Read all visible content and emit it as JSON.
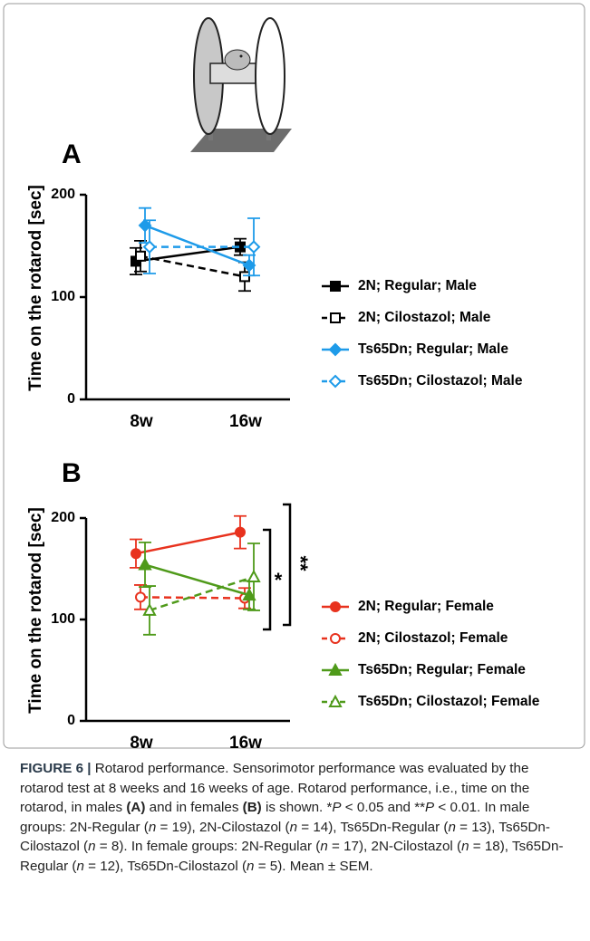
{
  "chart_data": [
    {
      "type": "line",
      "panel": "A",
      "ylabel": "Time on the rotarod [sec]",
      "categories": [
        "8w",
        "16w"
      ],
      "ylim": [
        0,
        200
      ],
      "yticks": [
        0,
        100,
        200
      ],
      "series": [
        {
          "name": "2N; Regular; Male",
          "color": "#000000",
          "marker": "square",
          "filled": true,
          "dashed": false,
          "values": [
            135,
            149
          ],
          "errors": [
            13,
            8
          ]
        },
        {
          "name": "2N; Cilostazol; Male",
          "color": "#000000",
          "marker": "square",
          "filled": false,
          "dashed": true,
          "values": [
            140,
            120
          ],
          "errors": [
            15,
            14
          ]
        },
        {
          "name": "Ts65Dn; Regular; Male",
          "color": "#1e9be9",
          "marker": "diamond",
          "filled": true,
          "dashed": false,
          "values": [
            170,
            131
          ],
          "errors": [
            17,
            10
          ]
        },
        {
          "name": "Ts65Dn; Cilostazol; Male",
          "color": "#1e9be9",
          "marker": "diamond",
          "filled": false,
          "dashed": true,
          "values": [
            149,
            149
          ],
          "errors": [
            26,
            28
          ]
        }
      ]
    },
    {
      "type": "line",
      "panel": "B",
      "ylabel": "Time on the rotarod [sec]",
      "categories": [
        "8w",
        "16w"
      ],
      "ylim": [
        0,
        200
      ],
      "yticks": [
        0,
        100,
        200
      ],
      "annotations": [
        "*",
        "**"
      ],
      "series": [
        {
          "name": "2N; Regular; Female",
          "color": "#e8321e",
          "marker": "circle",
          "filled": true,
          "dashed": false,
          "values": [
            165,
            186
          ],
          "errors": [
            14,
            16
          ]
        },
        {
          "name": "2N; Cilostazol; Female",
          "color": "#e8321e",
          "marker": "circle",
          "filled": false,
          "dashed": true,
          "values": [
            122,
            121
          ],
          "errors": [
            12,
            10
          ]
        },
        {
          "name": "Ts65Dn; Regular; Female",
          "color": "#4f9a1a",
          "marker": "triangle",
          "filled": true,
          "dashed": false,
          "values": [
            154,
            124
          ],
          "errors": [
            22,
            14
          ]
        },
        {
          "name": "Ts65Dn; Cilostazol; Female",
          "color": "#4f9a1a",
          "marker": "triangle",
          "filled": false,
          "dashed": true,
          "values": [
            109,
            142
          ],
          "errors": [
            24,
            33
          ]
        }
      ]
    }
  ],
  "caption": {
    "parts": [
      "FIGURE 6 | ",
      "Rotarod performance. Sensorimotor performance was evaluated by the rotarod test at 8 weeks and 16 weeks of age. Rotarod performance, i.e., time on the rotarod, in males ",
      "(A)",
      " and in females ",
      "(B)",
      " is shown. *",
      "P",
      " < 0.05 and **",
      "P",
      " < 0.01. In male groups: 2N-Regular (",
      "n",
      " = 19), 2N-Cilostazol (",
      "n",
      " = 14), Ts65Dn-Regular (",
      "n",
      " = 13), Ts65Dn-Cilostazol (",
      "n",
      " = 8). In female groups: 2N-Regular (",
      "n",
      " = 17), 2N-Cilostazol (",
      "n",
      " = 18), Ts65Dn-Regular (",
      "n",
      " = 12), Ts65Dn-Cilostazol (",
      "n",
      " = 5). Mean ± SEM."
    ]
  }
}
